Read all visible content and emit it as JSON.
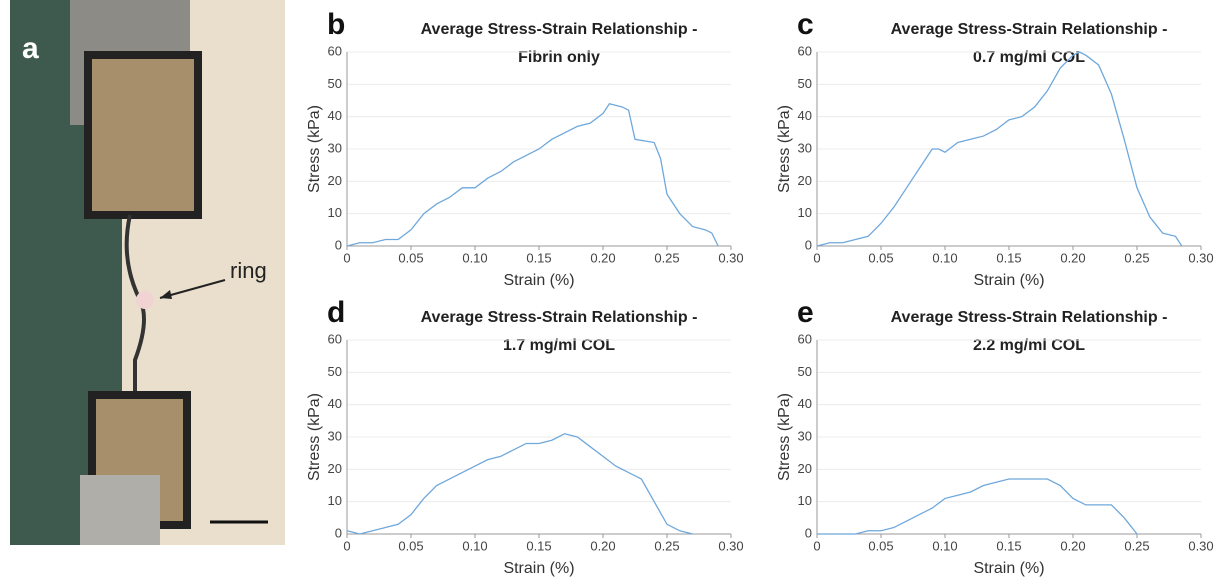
{
  "photo": {
    "label": "a",
    "annotation": "ring"
  },
  "chart_data": [
    {
      "type": "line",
      "panel_label": "b",
      "title": "Average Stress-Strain Relationship -",
      "subtitle": "Fibrin only",
      "x_label": "Strain (%)",
      "y_label": "Stress (kPa)",
      "color": "#6fa8dc",
      "grid": true,
      "xlim": [
        0,
        0.3
      ],
      "ylim": [
        0,
        60
      ],
      "xticks": [
        0,
        0.05,
        {
          "value": 0.1,
          "label": "0.10"
        },
        0.15,
        {
          "value": 0.2,
          "label": "0.20"
        },
        0.25,
        {
          "value": 0.3,
          "label": "0.30"
        }
      ],
      "yticks": [
        0,
        10,
        20,
        30,
        40,
        50,
        60
      ],
      "x": [
        0,
        0.01,
        0.02,
        0.03,
        0.04,
        0.05,
        0.06,
        0.07,
        0.08,
        0.09,
        0.1,
        0.11,
        0.12,
        0.13,
        0.14,
        0.15,
        0.16,
        0.17,
        0.18,
        0.19,
        0.2,
        0.205,
        0.215,
        0.22,
        0.225,
        0.24,
        0.245,
        0.25,
        0.26,
        0.27,
        0.28,
        0.285,
        0.29
      ],
      "values": [
        0,
        1,
        1,
        2,
        2,
        5,
        10,
        13,
        15,
        18,
        18,
        21,
        23,
        26,
        28,
        30,
        33,
        35,
        37,
        38,
        41,
        44,
        43,
        42,
        33,
        32,
        27,
        16,
        10,
        6,
        5,
        4,
        0
      ]
    },
    {
      "type": "line",
      "panel_label": "c",
      "title": "Average Stress-Strain Relationship -",
      "subtitle": "0.7 mg/ml COL",
      "x_label": "Strain (%)",
      "y_label": "Stress (kPa)",
      "color": "#6fa8dc",
      "grid": true,
      "xlim": [
        0,
        0.3
      ],
      "ylim": [
        0,
        60
      ],
      "xticks": [
        0,
        0.05,
        {
          "value": 0.1,
          "label": "0.10"
        },
        0.15,
        {
          "value": 0.2,
          "label": "0.20"
        },
        0.25,
        {
          "value": 0.3,
          "label": "0.30"
        }
      ],
      "yticks": [
        0,
        10,
        20,
        30,
        40,
        50,
        60
      ],
      "x": [
        0,
        0.01,
        0.02,
        0.03,
        0.04,
        0.05,
        0.06,
        0.07,
        0.08,
        0.09,
        0.095,
        0.1,
        0.11,
        0.12,
        0.13,
        0.14,
        0.15,
        0.16,
        0.17,
        0.18,
        0.19,
        0.2,
        0.205,
        0.21,
        0.22,
        0.23,
        0.24,
        0.25,
        0.26,
        0.27,
        0.28,
        0.285
      ],
      "values": [
        0,
        1,
        1,
        2,
        3,
        7,
        12,
        18,
        24,
        30,
        30,
        29,
        32,
        33,
        34,
        36,
        39,
        40,
        43,
        48,
        55,
        59,
        60,
        59,
        56,
        47,
        33,
        18,
        9,
        4,
        3,
        0
      ]
    },
    {
      "type": "line",
      "panel_label": "d",
      "title": "Average Stress-Strain Relationship -",
      "subtitle": "1.7 mg/ml COL",
      "x_label": "Strain (%)",
      "y_label": "Stress (kPa)",
      "color": "#6fa8dc",
      "grid": true,
      "xlim": [
        0,
        0.3
      ],
      "ylim": [
        0,
        60
      ],
      "xticks": [
        0,
        0.05,
        {
          "value": 0.1,
          "label": "0.10"
        },
        0.15,
        {
          "value": 0.2,
          "label": "0.20"
        },
        0.25,
        {
          "value": 0.3,
          "label": "0.30"
        }
      ],
      "yticks": [
        0,
        10,
        20,
        30,
        40,
        50,
        60
      ],
      "x": [
        0,
        0.01,
        0.02,
        0.03,
        0.04,
        0.05,
        0.06,
        0.07,
        0.08,
        0.09,
        0.1,
        0.11,
        0.12,
        0.13,
        0.14,
        0.15,
        0.16,
        0.17,
        0.18,
        0.19,
        0.2,
        0.21,
        0.22,
        0.23,
        0.24,
        0.25,
        0.26,
        0.27
      ],
      "values": [
        1,
        0,
        1,
        2,
        3,
        6,
        11,
        15,
        17,
        19,
        21,
        23,
        24,
        26,
        28,
        28,
        29,
        31,
        30,
        27,
        24,
        21,
        19,
        17,
        10,
        3,
        1,
        0
      ]
    },
    {
      "type": "line",
      "panel_label": "e",
      "title": "Average Stress-Strain Relationship -",
      "subtitle": "2.2 mg/ml COL",
      "x_label": "Strain (%)",
      "y_label": "Stress (kPa)",
      "color": "#6fa8dc",
      "grid": true,
      "xlim": [
        0,
        0.3
      ],
      "ylim": [
        0,
        60
      ],
      "xticks": [
        0,
        0.05,
        {
          "value": 0.1,
          "label": "0.10"
        },
        0.15,
        {
          "value": 0.2,
          "label": "0.20"
        },
        0.25,
        {
          "value": 0.3,
          "label": "0.30"
        }
      ],
      "yticks": [
        0,
        10,
        20,
        30,
        40,
        50,
        60
      ],
      "x": [
        0,
        0.01,
        0.02,
        0.03,
        0.04,
        0.05,
        0.06,
        0.07,
        0.08,
        0.09,
        0.1,
        0.11,
        0.12,
        0.13,
        0.14,
        0.15,
        0.16,
        0.17,
        0.18,
        0.19,
        0.2,
        0.21,
        0.22,
        0.23,
        0.24,
        0.25
      ],
      "values": [
        0,
        0,
        0,
        0,
        1,
        1,
        2,
        4,
        6,
        8,
        11,
        12,
        13,
        15,
        16,
        17,
        17,
        17,
        17,
        15,
        11,
        9,
        9,
        9,
        5,
        0
      ]
    }
  ]
}
